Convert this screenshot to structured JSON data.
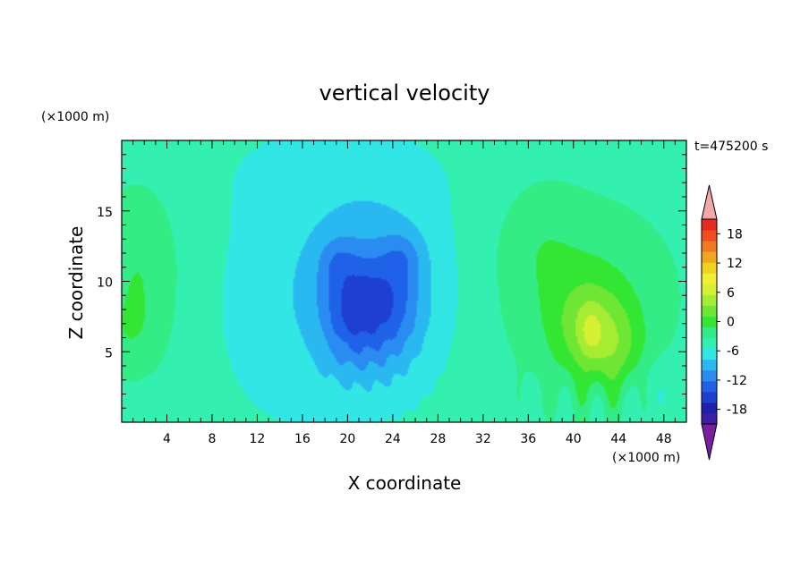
{
  "chart_data": {
    "type": "heatmap",
    "title": "vertical velocity",
    "xlabel": "X coordinate",
    "ylabel": "Z coordinate",
    "x_unit": "(×1000 m)",
    "y_unit": "(×1000 m)",
    "time_label": "t=475200 s",
    "xlim": [
      0,
      50
    ],
    "ylim": [
      0,
      20
    ],
    "x_ticks": [
      4,
      8,
      12,
      16,
      20,
      24,
      28,
      32,
      36,
      40,
      44,
      48
    ],
    "y_ticks": [
      5,
      10,
      15
    ],
    "colorbar": {
      "min": -21,
      "max": 21,
      "step": 3,
      "tick_labels": [
        18,
        12,
        6,
        0,
        -6,
        -12,
        -18
      ],
      "extend": "both",
      "colors": [
        "#7a1fa2",
        "#3d1fa6",
        "#1f1faf",
        "#1f3fd1",
        "#1f62e8",
        "#2a8cf0",
        "#2ab8f0",
        "#33e6e6",
        "#33f0b0",
        "#33ec86",
        "#33e633",
        "#6fe633",
        "#a6ec33",
        "#d8f033",
        "#f0f033",
        "#f0d21f",
        "#f0a61f",
        "#f07a1f",
        "#f04e1f",
        "#e62a1f",
        "#f2a8a8"
      ]
    },
    "features": [
      {
        "x": 20.5,
        "z": 8.0,
        "w": -12
      },
      {
        "x": 24.0,
        "z": 8.5,
        "w": -9
      },
      {
        "x": 41.5,
        "z": 6.5,
        "w": 10
      },
      {
        "x": 44.0,
        "z": 5.0,
        "w": 6
      },
      {
        "x": 1.5,
        "z": 10.5,
        "w": 5
      }
    ]
  }
}
